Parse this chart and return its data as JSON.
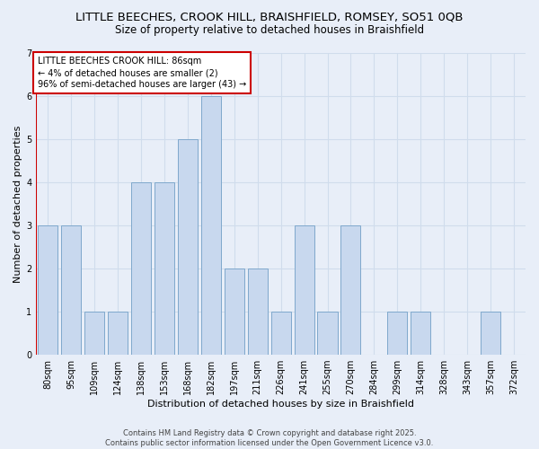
{
  "title1": "LITTLE BEECHES, CROOK HILL, BRAISHFIELD, ROMSEY, SO51 0QB",
  "title2": "Size of property relative to detached houses in Braishfield",
  "xlabel": "Distribution of detached houses by size in Braishfield",
  "ylabel": "Number of detached properties",
  "categories": [
    "80sqm",
    "95sqm",
    "109sqm",
    "124sqm",
    "138sqm",
    "153sqm",
    "168sqm",
    "182sqm",
    "197sqm",
    "211sqm",
    "226sqm",
    "241sqm",
    "255sqm",
    "270sqm",
    "284sqm",
    "299sqm",
    "314sqm",
    "328sqm",
    "343sqm",
    "357sqm",
    "372sqm"
  ],
  "values": [
    3,
    3,
    1,
    1,
    4,
    4,
    5,
    6,
    2,
    2,
    1,
    3,
    1,
    3,
    0,
    1,
    1,
    0,
    0,
    1,
    0
  ],
  "bar_color": "#c8d8ee",
  "bar_edgecolor": "#7fa8cc",
  "annotation_text": "LITTLE BEECHES CROOK HILL: 86sqm\n← 4% of detached houses are smaller (2)\n96% of semi-detached houses are larger (43) →",
  "annotation_box_facecolor": "#ffffff",
  "annotation_box_edgecolor": "#cc0000",
  "vline_color": "#cc0000",
  "ylim": [
    0,
    7
  ],
  "yticks": [
    0,
    1,
    2,
    3,
    4,
    5,
    6,
    7
  ],
  "grid_color": "#d0dcec",
  "bg_color": "#e8eef8",
  "fig_bg_color": "#e8eef8",
  "footer": "Contains HM Land Registry data © Crown copyright and database right 2025.\nContains public sector information licensed under the Open Government Licence v3.0.",
  "title_fontsize": 9.5,
  "subtitle_fontsize": 8.5,
  "tick_fontsize": 7,
  "ylabel_fontsize": 8,
  "xlabel_fontsize": 8,
  "annotation_fontsize": 7,
  "footer_fontsize": 6
}
